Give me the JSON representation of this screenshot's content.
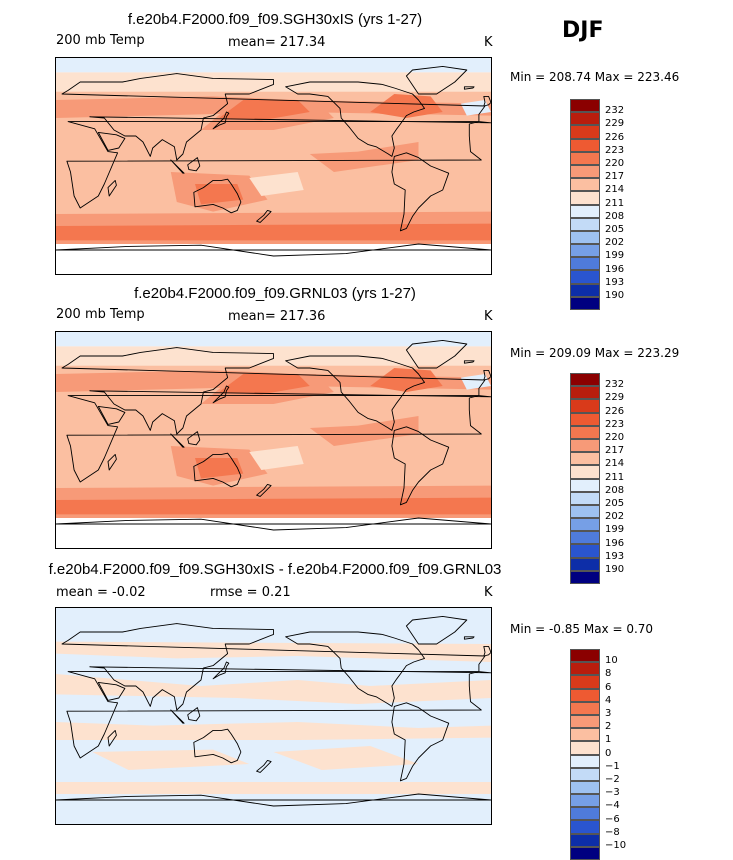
{
  "season": "DJF",
  "chart_data": [
    {
      "type": "heatmap",
      "title": "f.e20b4.F2000.f09_f09.SGH30xIS (yrs 1-27)",
      "variable": "200 mb Temp",
      "mean_label": "mean= 217.34",
      "units": "K",
      "minmax": "Min = 208.74 Max = 223.46",
      "min": 208.74,
      "max": 223.46,
      "levels": [
        "232",
        "229",
        "226",
        "223",
        "220",
        "217",
        "214",
        "211",
        "208",
        "205",
        "202",
        "199",
        "196",
        "193",
        "190"
      ],
      "colors": [
        "#8b0000",
        "#b81d0d",
        "#d93a1a",
        "#ee5a32",
        "#f4774f",
        "#f79a78",
        "#fbbfa1",
        "#fde2cf",
        "#e2effc",
        "#c3dbf7",
        "#9ec1f0",
        "#769fe6",
        "#4f7bdb",
        "#2a55cf",
        "#0d2ea8",
        "#000080"
      ]
    },
    {
      "type": "heatmap",
      "title": "f.e20b4.F2000.f09_f09.GRNL03 (yrs 1-27)",
      "variable": "200 mb Temp",
      "mean_label": "mean= 217.36",
      "units": "K",
      "minmax": "Min = 209.09 Max = 223.29",
      "min": 209.09,
      "max": 223.29,
      "levels": [
        "232",
        "229",
        "226",
        "223",
        "220",
        "217",
        "214",
        "211",
        "208",
        "205",
        "202",
        "199",
        "196",
        "193",
        "190"
      ],
      "colors": [
        "#8b0000",
        "#b81d0d",
        "#d93a1a",
        "#ee5a32",
        "#f4774f",
        "#f79a78",
        "#fbbfa1",
        "#fde2cf",
        "#e2effc",
        "#c3dbf7",
        "#9ec1f0",
        "#769fe6",
        "#4f7bdb",
        "#2a55cf",
        "#0d2ea8",
        "#000080"
      ]
    },
    {
      "type": "heatmap",
      "title": "f.e20b4.F2000.f09_f09.SGH30xIS - f.e20b4.F2000.f09_f09.GRNL03",
      "variable": "mean =   -0.02",
      "mean_label": "rmse =    0.21",
      "units": "K",
      "minmax": "Min =  -0.85 Max =    0.70",
      "min": -0.85,
      "max": 0.7,
      "levels": [
        "10",
        "8",
        "6",
        "4",
        "3",
        "2",
        "1",
        "0",
        "−1",
        "−2",
        "−3",
        "−4",
        "−6",
        "−8",
        "−10"
      ],
      "colors": [
        "#8b0000",
        "#b81d0d",
        "#d93a1a",
        "#ee5a32",
        "#f4774f",
        "#f79a78",
        "#fbbfa1",
        "#fde2cf",
        "#e2effc",
        "#c3dbf7",
        "#9ec1f0",
        "#769fe6",
        "#4f7bdb",
        "#2a55cf",
        "#0d2ea8",
        "#000080"
      ]
    }
  ]
}
